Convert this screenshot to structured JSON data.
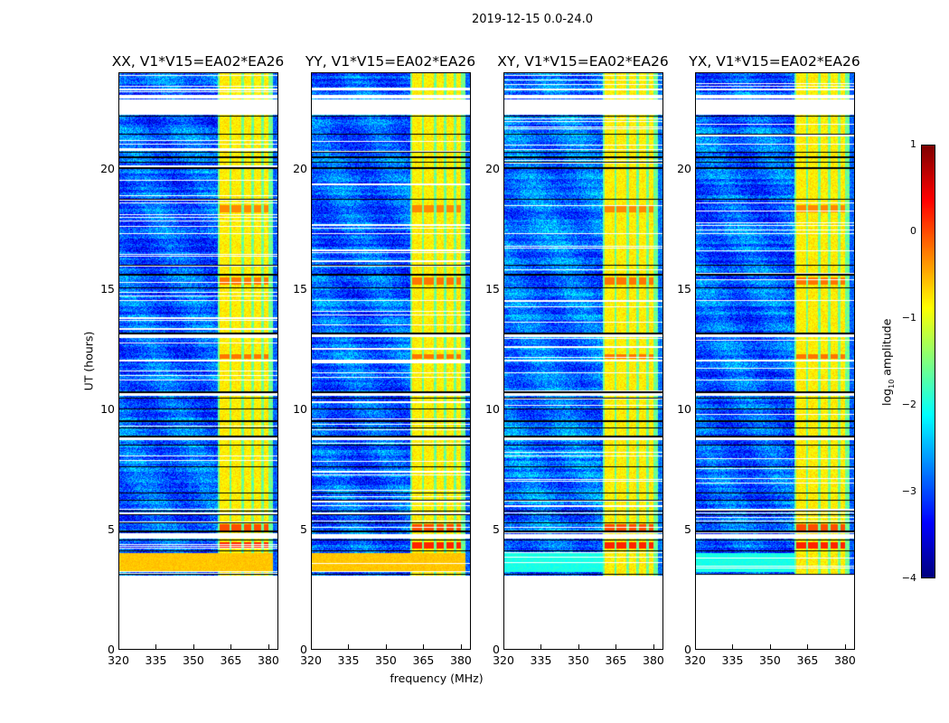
{
  "suptitle": "2019-12-15 0.0-24.0",
  "xlabel": "frequency (MHz)",
  "ylabel": "UT (hours)",
  "colorbar": {
    "label_prefix": "log",
    "label_sub": "10",
    "label_suffix": " amplitude",
    "ticks": [
      "1",
      "0",
      "−1",
      "−2",
      "−3",
      "−4"
    ],
    "range": [
      -4,
      1
    ],
    "colormap": "jet"
  },
  "chart_data": {
    "type": "heatmap",
    "title": "2019-12-15 0.0-24.0",
    "xlabel": "frequency (MHz)",
    "ylabel": "UT (hours)",
    "xlim": [
      320,
      384
    ],
    "ylim": [
      0,
      24
    ],
    "xticks": [
      "320",
      "335",
      "350",
      "365",
      "380"
    ],
    "yticks": [
      "0",
      "5",
      "10",
      "15",
      "20"
    ],
    "value_units": "log10 amplitude",
    "panels": [
      {
        "title": "XX, V1*V15=EA02*EA26",
        "polarization": "XX",
        "base_level": -2.9,
        "low_band_level": -0.6
      },
      {
        "title": "YY, V1*V15=EA02*EA26",
        "polarization": "YY",
        "base_level": -2.9,
        "low_band_level": -0.6
      },
      {
        "title": "XY, V1*V15=EA02*EA26",
        "polarization": "XY",
        "base_level": -2.8,
        "low_band_level": -2.0
      },
      {
        "title": "YX, V1*V15=EA02*EA26",
        "polarization": "YX",
        "base_level": -2.9,
        "low_band_level": -2.0
      }
    ],
    "data_start_hour": 3.05,
    "low_band_hours": [
      3.2,
      4.0
    ],
    "flagged_hours": [
      [
        0,
        3.05
      ],
      [
        22.25,
        22.9
      ],
      [
        22.95,
        23.1
      ],
      [
        13.0,
        13.1
      ],
      [
        10.55,
        10.65
      ],
      [
        8.7,
        8.8
      ],
      [
        4.6,
        4.8
      ],
      [
        5.65,
        5.7
      ],
      [
        23.3,
        23.35
      ],
      [
        12.0,
        12.05
      ],
      [
        17.3,
        17.35
      ],
      [
        14.5,
        14.55
      ]
    ],
    "black_line_hours": [
      3.1,
      4.1,
      4.55,
      4.9,
      5.25,
      5.6,
      5.75,
      6.2,
      6.5,
      7.6,
      8.5,
      8.85,
      9.2,
      9.5,
      10.0,
      10.45,
      10.7,
      13.15,
      15.05,
      15.6,
      16.0,
      18.75,
      20.05,
      20.3,
      20.5,
      20.7,
      21.45,
      22.2
    ],
    "rfi_channels_mhz": [
      [
        360.5,
        364.5
      ],
      [
        365.5,
        369.5
      ],
      [
        370.5,
        373.5
      ],
      [
        374.5,
        377.5
      ],
      [
        378.5,
        380.5
      ]
    ],
    "rfi_level": -0.8,
    "hot_rows_hours": [
      [
        4.2,
        4.45,
        0.2
      ],
      [
        4.95,
        5.2,
        0.0
      ],
      [
        12.1,
        12.3,
        -0.2
      ],
      [
        18.2,
        18.5,
        -0.3
      ],
      [
        15.2,
        15.5,
        -0.2
      ]
    ]
  }
}
